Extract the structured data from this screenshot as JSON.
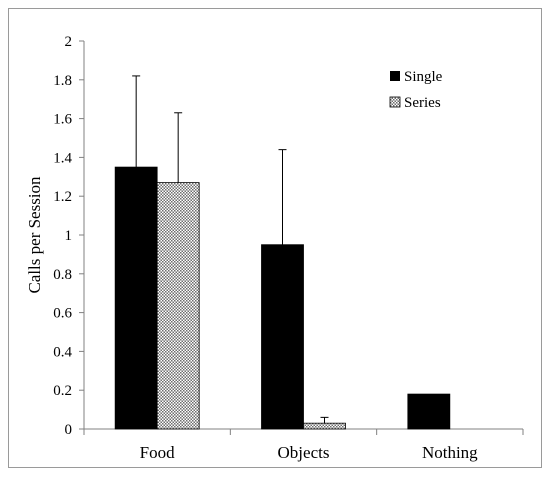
{
  "chart_data": {
    "type": "bar",
    "title": "",
    "xlabel": "",
    "ylabel": "Calls per Session",
    "ylim": [
      0,
      2
    ],
    "yticks": [
      "0",
      "0.2",
      "0.4",
      "0.6",
      "0.8",
      "1",
      "1.2",
      "1.4",
      "1.6",
      "1.8",
      "2"
    ],
    "categories": [
      "Food",
      "Objects",
      "Nothing"
    ],
    "series": [
      {
        "name": "Single",
        "values": [
          1.35,
          0.95,
          0.18
        ],
        "error_upper": [
          0.47,
          0.49,
          null
        ],
        "color": "#000000",
        "pattern": "solid"
      },
      {
        "name": "Series",
        "values": [
          1.27,
          0.03,
          0
        ],
        "error_upper": [
          0.36,
          0.03,
          null
        ],
        "color": "#bdbdbd",
        "pattern": "dotted"
      }
    ],
    "grid": false,
    "legend_position": "top-right"
  }
}
